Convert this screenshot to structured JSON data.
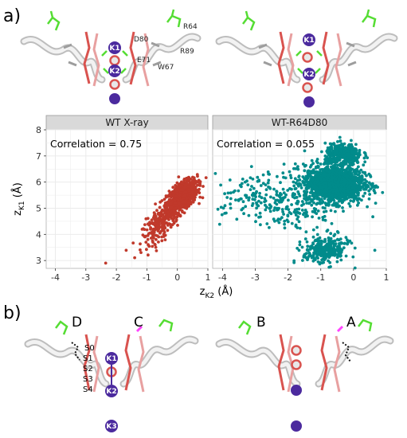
{
  "panel_labels": {
    "a": "a)",
    "b": "b)"
  },
  "residue_labels": [
    "D80",
    "R64",
    "E71",
    "R89",
    "W67"
  ],
  "ion_labels": {
    "k1": "K1",
    "k2": "K2",
    "k3": "K3"
  },
  "chain_labels": [
    "D",
    "C",
    "B",
    "A"
  ],
  "site_labels": [
    "S0",
    "S1",
    "S2",
    "S3",
    "S4"
  ],
  "colors": {
    "wt_xray": "#c0392b",
    "wt_r64d80": "#008b8b",
    "ion": "#4b2a9e",
    "strip": "#d9d9d9",
    "plot_bg": "#ffffff",
    "grid": "#ebebeb"
  },
  "chart_data": {
    "type": "scatter",
    "xlabel_main": "z",
    "xlabel_sub": "K2",
    "xlabel_unit": " (Å)",
    "ylabel_main": "z",
    "ylabel_sub": "K1",
    "ylabel_unit": " (Å)",
    "xlim": [
      -4.3,
      1.0
    ],
    "ylim": [
      2.7,
      8.0
    ],
    "xticks": [
      -4,
      -3,
      -2,
      -1,
      0,
      1
    ],
    "yticks": [
      3,
      4,
      5,
      6,
      7,
      8
    ],
    "grid": true,
    "facets": [
      {
        "name": "WT X-ray",
        "annotation": "Correlation = 0.75",
        "point_groups": [
          {
            "x_mean": 0.15,
            "y_mean": 5.45,
            "sx": 0.25,
            "sy": 0.3,
            "n": 900,
            "corr": 0.55
          },
          {
            "x_mean": -0.55,
            "y_mean": 4.4,
            "sx": 0.3,
            "sy": 0.4,
            "n": 220,
            "corr": 0.7
          }
        ],
        "extra_points": [
          [
            -2.35,
            2.9
          ]
        ]
      },
      {
        "name": "WT-R64D80",
        "annotation": "Correlation = 0.055",
        "point_groups": [
          {
            "x_mean": -0.6,
            "y_mean": 5.95,
            "sx": 0.45,
            "sy": 0.35,
            "n": 1500,
            "corr": 0.0
          },
          {
            "x_mean": -0.3,
            "y_mean": 7.05,
            "sx": 0.28,
            "sy": 0.2,
            "n": 350,
            "corr": 0.0
          },
          {
            "x_mean": -2.6,
            "y_mean": 5.45,
            "sx": 1.0,
            "sy": 0.45,
            "n": 220,
            "corr": 0.0
          },
          {
            "x_mean": -0.85,
            "y_mean": 3.4,
            "sx": 0.35,
            "sy": 0.28,
            "n": 280,
            "corr": 0.2
          },
          {
            "x_mean": -1.7,
            "y_mean": 4.7,
            "sx": 0.45,
            "sy": 0.25,
            "n": 60,
            "corr": 0.0
          }
        ],
        "extra_points": []
      }
    ]
  }
}
